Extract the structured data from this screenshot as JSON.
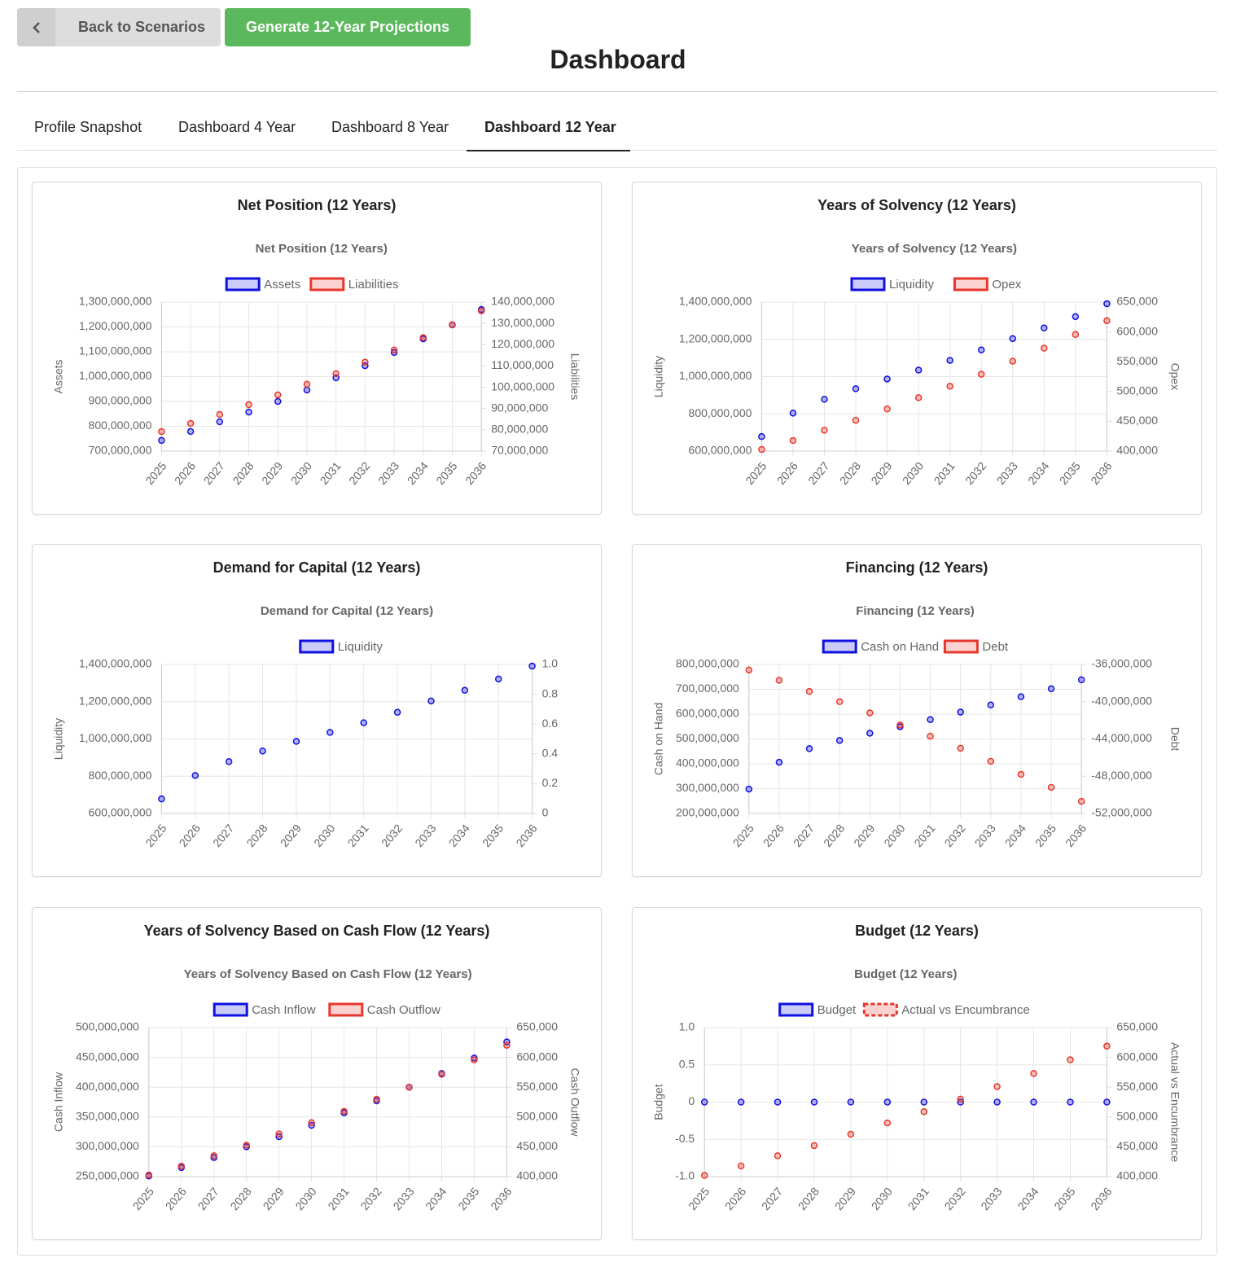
{
  "header": {
    "back_button": "Back to Scenarios",
    "generate_button": "Generate 12-Year Projections",
    "title": "Dashboard"
  },
  "tabs": [
    "Profile Snapshot",
    "Dashboard 4 Year",
    "Dashboard 8 Year",
    "Dashboard 12 Year"
  ],
  "chart_data": [
    {
      "type": "line",
      "title": "Net Position (12 Years)",
      "subtitle": "Net Position (12 Years)",
      "categories": [
        "2025",
        "2026",
        "2027",
        "2028",
        "2029",
        "2030",
        "2031",
        "2032",
        "2033",
        "2034",
        "2035",
        "2036"
      ],
      "ylabel": "Assets",
      "y2label": "Liabilities",
      "series": [
        {
          "name": "Assets",
          "color": "#1010e0",
          "axis": "y",
          "values": [
            743000000,
            779000000,
            818000000,
            857000000,
            900000000,
            946000000,
            995000000,
            1044000000,
            1097000000,
            1152000000,
            1208000000,
            1270000000
          ]
        },
        {
          "name": "Liabilities",
          "color": "#e8372c",
          "axis": "y2",
          "values": [
            79200000,
            83000000,
            87200000,
            91800000,
            96400000,
            101400000,
            106400000,
            111800000,
            117500000,
            123300000,
            129400000,
            135900000
          ]
        }
      ],
      "ylim": [
        700000000,
        1300000000
      ],
      "yticks": [
        {
          "value": 700000000,
          "label": "700,000,000"
        },
        {
          "value": 800000000,
          "label": "800,000,000"
        },
        {
          "value": 900000000,
          "label": "900,000,000"
        },
        {
          "value": 1000000000,
          "label": "1,000,000,000"
        },
        {
          "value": 1100000000,
          "label": "1,100,000,000"
        },
        {
          "value": 1200000000,
          "label": "1,200,000,000"
        },
        {
          "value": 1300000000,
          "label": "1,300,000,000"
        }
      ],
      "y2lim": [
        70000000,
        140000000
      ],
      "y2ticks": [
        {
          "value": 70000000,
          "label": "70,000,000"
        },
        {
          "value": 80000000,
          "label": "80,000,000"
        },
        {
          "value": 90000000,
          "label": "90,000,000"
        },
        {
          "value": 100000000,
          "label": "100,000,000"
        },
        {
          "value": 110000000,
          "label": "110,000,000"
        },
        {
          "value": 120000000,
          "label": "120,000,000"
        },
        {
          "value": 130000000,
          "label": "130,000,000"
        },
        {
          "value": 140000000,
          "label": "140,000,000"
        }
      ],
      "grid": true
    },
    {
      "type": "line",
      "title": "Years of Solvency (12 Years)",
      "subtitle": "Years of Solvency (12 Years)",
      "categories": [
        "2025",
        "2026",
        "2027",
        "2028",
        "2029",
        "2030",
        "2031",
        "2032",
        "2033",
        "2034",
        "2035",
        "2036"
      ],
      "ylabel": "Liquidity",
      "y2label": "Opex",
      "series": [
        {
          "name": "Liquidity",
          "color": "#1010e0",
          "axis": "y",
          "values": [
            678000000,
            804000000,
            878000000,
            935000000,
            987000000,
            1035000000,
            1087000000,
            1143000000,
            1204000000,
            1261000000,
            1322000000,
            1391000000
          ]
        },
        {
          "name": "Opex",
          "color": "#e8372c",
          "axis": "y2",
          "values": [
            402700,
            417700,
            435000,
            451600,
            470700,
            489700,
            508700,
            529000,
            550800,
            572600,
            595700,
            618800
          ]
        }
      ],
      "ylim": [
        600000000,
        1400000000
      ],
      "yticks": [
        {
          "value": 600000000,
          "label": "600,000,000"
        },
        {
          "value": 800000000,
          "label": "800,000,000"
        },
        {
          "value": 1000000000,
          "label": "1,000,000,000"
        },
        {
          "value": 1200000000,
          "label": "1,200,000,000"
        },
        {
          "value": 1400000000,
          "label": "1,400,000,000"
        }
      ],
      "y2lim": [
        400000,
        650000
      ],
      "y2ticks": [
        {
          "value": 400000,
          "label": "400,000"
        },
        {
          "value": 450000,
          "label": "450,000"
        },
        {
          "value": 500000,
          "label": "500,000"
        },
        {
          "value": 550000,
          "label": "550,000"
        },
        {
          "value": 600000,
          "label": "600,000"
        },
        {
          "value": 650000,
          "label": "650,000"
        }
      ],
      "grid": true
    },
    {
      "type": "line",
      "title": "Demand for Capital (12 Years)",
      "subtitle": "Demand for Capital (12 Years)",
      "categories": [
        "2025",
        "2026",
        "2027",
        "2028",
        "2029",
        "2030",
        "2031",
        "2032",
        "2033",
        "2034",
        "2035",
        "2036"
      ],
      "ylabel": "Liquidity",
      "series": [
        {
          "name": "Liquidity",
          "color": "#1010e0",
          "axis": "y",
          "values": [
            678000000,
            804000000,
            878000000,
            935000000,
            987000000,
            1035000000,
            1087000000,
            1143000000,
            1204000000,
            1261000000,
            1322000000,
            1391000000
          ]
        }
      ],
      "ylim": [
        600000000,
        1400000000
      ],
      "yticks": [
        {
          "value": 600000000,
          "label": "600,000,000"
        },
        {
          "value": 800000000,
          "label": "800,000,000"
        },
        {
          "value": 1000000000,
          "label": "1,000,000,000"
        },
        {
          "value": 1200000000,
          "label": "1,200,000,000"
        },
        {
          "value": 1400000000,
          "label": "1,400,000,000"
        }
      ],
      "y2lim": [
        0,
        1
      ],
      "y2ticks": [
        0,
        0.2,
        0.4,
        0.6,
        0.8,
        {
          "value": 1,
          "label": "1.0"
        }
      ],
      "grid": true
    },
    {
      "type": "line",
      "title": "Financing (12 Years)",
      "subtitle": "Financing (12 Years)",
      "categories": [
        "2025",
        "2026",
        "2027",
        "2028",
        "2029",
        "2030",
        "2031",
        "2032",
        "2033",
        "2034",
        "2035",
        "2036"
      ],
      "ylabel": "Cash on Hand",
      "y2label": "Debt",
      "series": [
        {
          "name": "Cash on Hand",
          "color": "#1010e0",
          "axis": "y",
          "values": [
            298000000,
            406000000,
            461000000,
            494000000,
            523000000,
            549000000,
            578000000,
            608000000,
            637000000,
            670000000,
            702000000,
            738000000
          ]
        },
        {
          "name": "Debt",
          "color": "#e8372c",
          "axis": "y2",
          "values": [
            -36600000,
            -37700000,
            -38900000,
            -40000000,
            -41200000,
            -42500000,
            -43700000,
            -45000000,
            -46400000,
            -47800000,
            -49200000,
            -50700000
          ]
        }
      ],
      "ylim": [
        200000000,
        800000000
      ],
      "yticks": [
        {
          "value": 200000000,
          "label": "200,000,000"
        },
        {
          "value": 300000000,
          "label": "300,000,000"
        },
        {
          "value": 400000000,
          "label": "400,000,000"
        },
        {
          "value": 500000000,
          "label": "500,000,000"
        },
        {
          "value": 600000000,
          "label": "600,000,000"
        },
        {
          "value": 700000000,
          "label": "700,000,000"
        },
        {
          "value": 800000000,
          "label": "800,000,000"
        }
      ],
      "y2lim": [
        -52000000,
        -36000000
      ],
      "y2ticks": [
        {
          "value": -52000000,
          "label": "-52,000,000"
        },
        {
          "value": -48000000,
          "label": "-48,000,000"
        },
        {
          "value": -44000000,
          "label": "-44,000,000"
        },
        {
          "value": -40000000,
          "label": "-40,000,000"
        },
        {
          "value": -36000000,
          "label": "-36,000,000"
        }
      ],
      "grid": true
    },
    {
      "type": "line",
      "title": "Years of Solvency Based on Cash Flow (12 Years)",
      "subtitle": "Years of Solvency Based on Cash Flow (12 Years)",
      "categories": [
        "2025",
        "2026",
        "2027",
        "2028",
        "2029",
        "2030",
        "2031",
        "2032",
        "2033",
        "2034",
        "2035",
        "2036"
      ],
      "ylabel": "Cash Inflow",
      "y2label": "Cash Outflow",
      "series": [
        {
          "name": "Cash Inflow",
          "color": "#1010e0",
          "axis": "y",
          "values": [
            251000000,
            265000000,
            282000000,
            300000000,
            317000000,
            336000000,
            357000000,
            377000000,
            400000000,
            423000000,
            449000000,
            476000000
          ]
        },
        {
          "name": "Cash Outflow",
          "color": "#e8372c",
          "axis": "y2",
          "values": [
            402700,
            417600,
            435000,
            452700,
            471600,
            490500,
            509500,
            529700,
            550000,
            571600,
            595900,
            620300
          ]
        }
      ],
      "ylim": [
        250000000,
        500000000
      ],
      "yticks": [
        {
          "value": 250000000,
          "label": "250,000,000"
        },
        {
          "value": 300000000,
          "label": "300,000,000"
        },
        {
          "value": 350000000,
          "label": "350,000,000"
        },
        {
          "value": 400000000,
          "label": "400,000,000"
        },
        {
          "value": 450000000,
          "label": "450,000,000"
        },
        {
          "value": 500000000,
          "label": "500,000,000"
        }
      ],
      "y2lim": [
        400000,
        650000
      ],
      "y2ticks": [
        {
          "value": 400000,
          "label": "400,000"
        },
        {
          "value": 450000,
          "label": "450,000"
        },
        {
          "value": 500000,
          "label": "500,000"
        },
        {
          "value": 550000,
          "label": "550,000"
        },
        {
          "value": 600000,
          "label": "600,000"
        },
        {
          "value": 650000,
          "label": "650,000"
        }
      ],
      "grid": true
    },
    {
      "type": "line",
      "title": "Budget (12 Years)",
      "subtitle": "Budget (12 Years)",
      "categories": [
        "2025",
        "2026",
        "2027",
        "2028",
        "2029",
        "2030",
        "2031",
        "2032",
        "2033",
        "2034",
        "2035",
        "2036"
      ],
      "ylabel": "Budget",
      "y2label": "Actual vs Encumbrance",
      "series": [
        {
          "name": "Budget",
          "color": "#1010e0",
          "axis": "y",
          "values": [
            0,
            0,
            0,
            0,
            0,
            0,
            0,
            0,
            0,
            0,
            0,
            0
          ]
        },
        {
          "name": "Actual vs Encumbrance",
          "color": "#e8372c",
          "axis": "y2",
          "dashed": true,
          "values": [
            402000,
            418000,
            435000,
            452000,
            471000,
            490000,
            509000,
            530000,
            551000,
            573000,
            596000,
            619000
          ]
        }
      ],
      "ylim": [
        -1,
        1
      ],
      "yticks": [
        {
          "value": -1,
          "label": "-1.0"
        },
        -0.5,
        0,
        0.5,
        {
          "value": 1,
          "label": "1.0"
        }
      ],
      "y2lim": [
        400000,
        650000
      ],
      "y2ticks": [
        {
          "value": 400000,
          "label": "400,000"
        },
        {
          "value": 450000,
          "label": "450,000"
        },
        {
          "value": 500000,
          "label": "500,000"
        },
        {
          "value": 550000,
          "label": "550,000"
        },
        {
          "value": 600000,
          "label": "600,000"
        },
        {
          "value": 650000,
          "label": "650,000"
        }
      ],
      "grid": true
    }
  ]
}
